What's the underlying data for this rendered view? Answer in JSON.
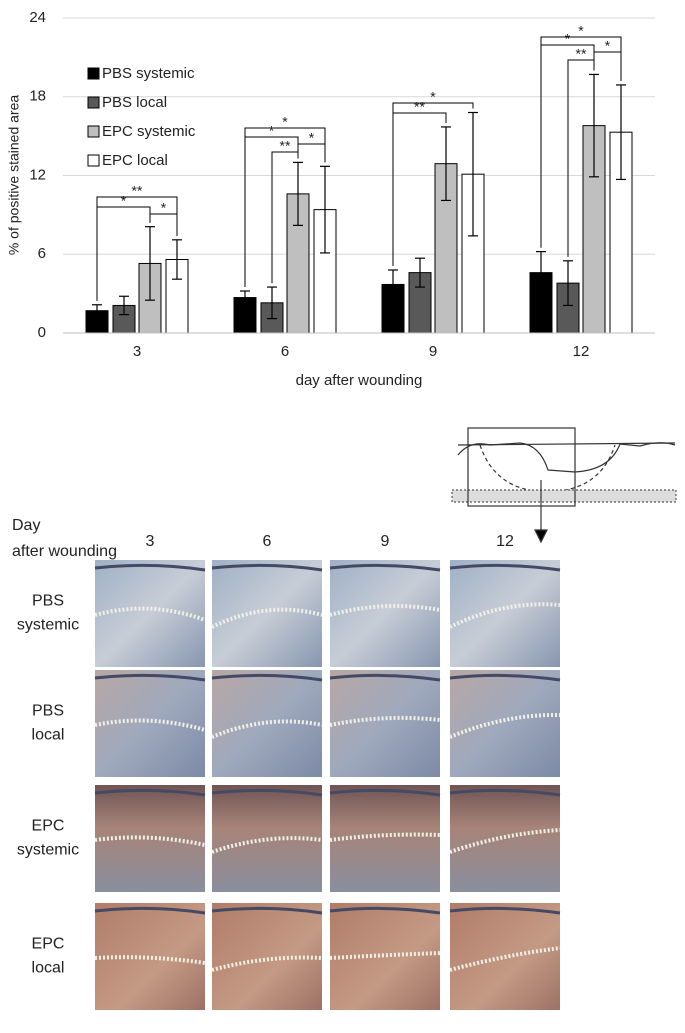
{
  "chart_data": {
    "type": "bar",
    "y_label": "% of positive stained area",
    "x_label": "day after wounding",
    "categories": [
      "3",
      "6",
      "9",
      "12"
    ],
    "series": [
      {
        "name": "PBS systemic",
        "color": "#000000",
        "values": [
          1.7,
          2.7,
          3.7,
          4.6
        ],
        "errors": [
          0.45,
          0.5,
          1.1,
          1.6
        ]
      },
      {
        "name": "PBS local",
        "color": "#595959",
        "values": [
          2.1,
          2.3,
          4.6,
          3.8
        ],
        "errors": [
          0.7,
          1.2,
          1.1,
          1.7
        ]
      },
      {
        "name": "EPC systemic",
        "color": "#bfbfbf",
        "values": [
          5.3,
          10.6,
          12.9,
          15.8
        ],
        "errors": [
          2.8,
          2.4,
          2.8,
          3.9
        ]
      },
      {
        "name": "EPC local",
        "color": "#ffffff",
        "values": [
          5.6,
          9.4,
          12.1,
          15.3
        ],
        "errors": [
          1.5,
          3.3,
          4.7,
          3.6
        ]
      }
    ],
    "ylim": [
      0,
      24
    ],
    "yticks": [
      0,
      6,
      12,
      18,
      24
    ],
    "grid": true,
    "legend": "upper left",
    "annotations": [
      "**",
      "*",
      "*",
      "*",
      "*",
      "*",
      "**",
      "*",
      "**",
      "*",
      "*",
      "*",
      "**"
    ]
  },
  "micrograph_grid": {
    "corner_label": "Day after wounding",
    "columns": [
      "3",
      "6",
      "9",
      "12"
    ],
    "rows": [
      "PBS systemic",
      "PBS local",
      "EPC systemic",
      "EPC local"
    ]
  }
}
